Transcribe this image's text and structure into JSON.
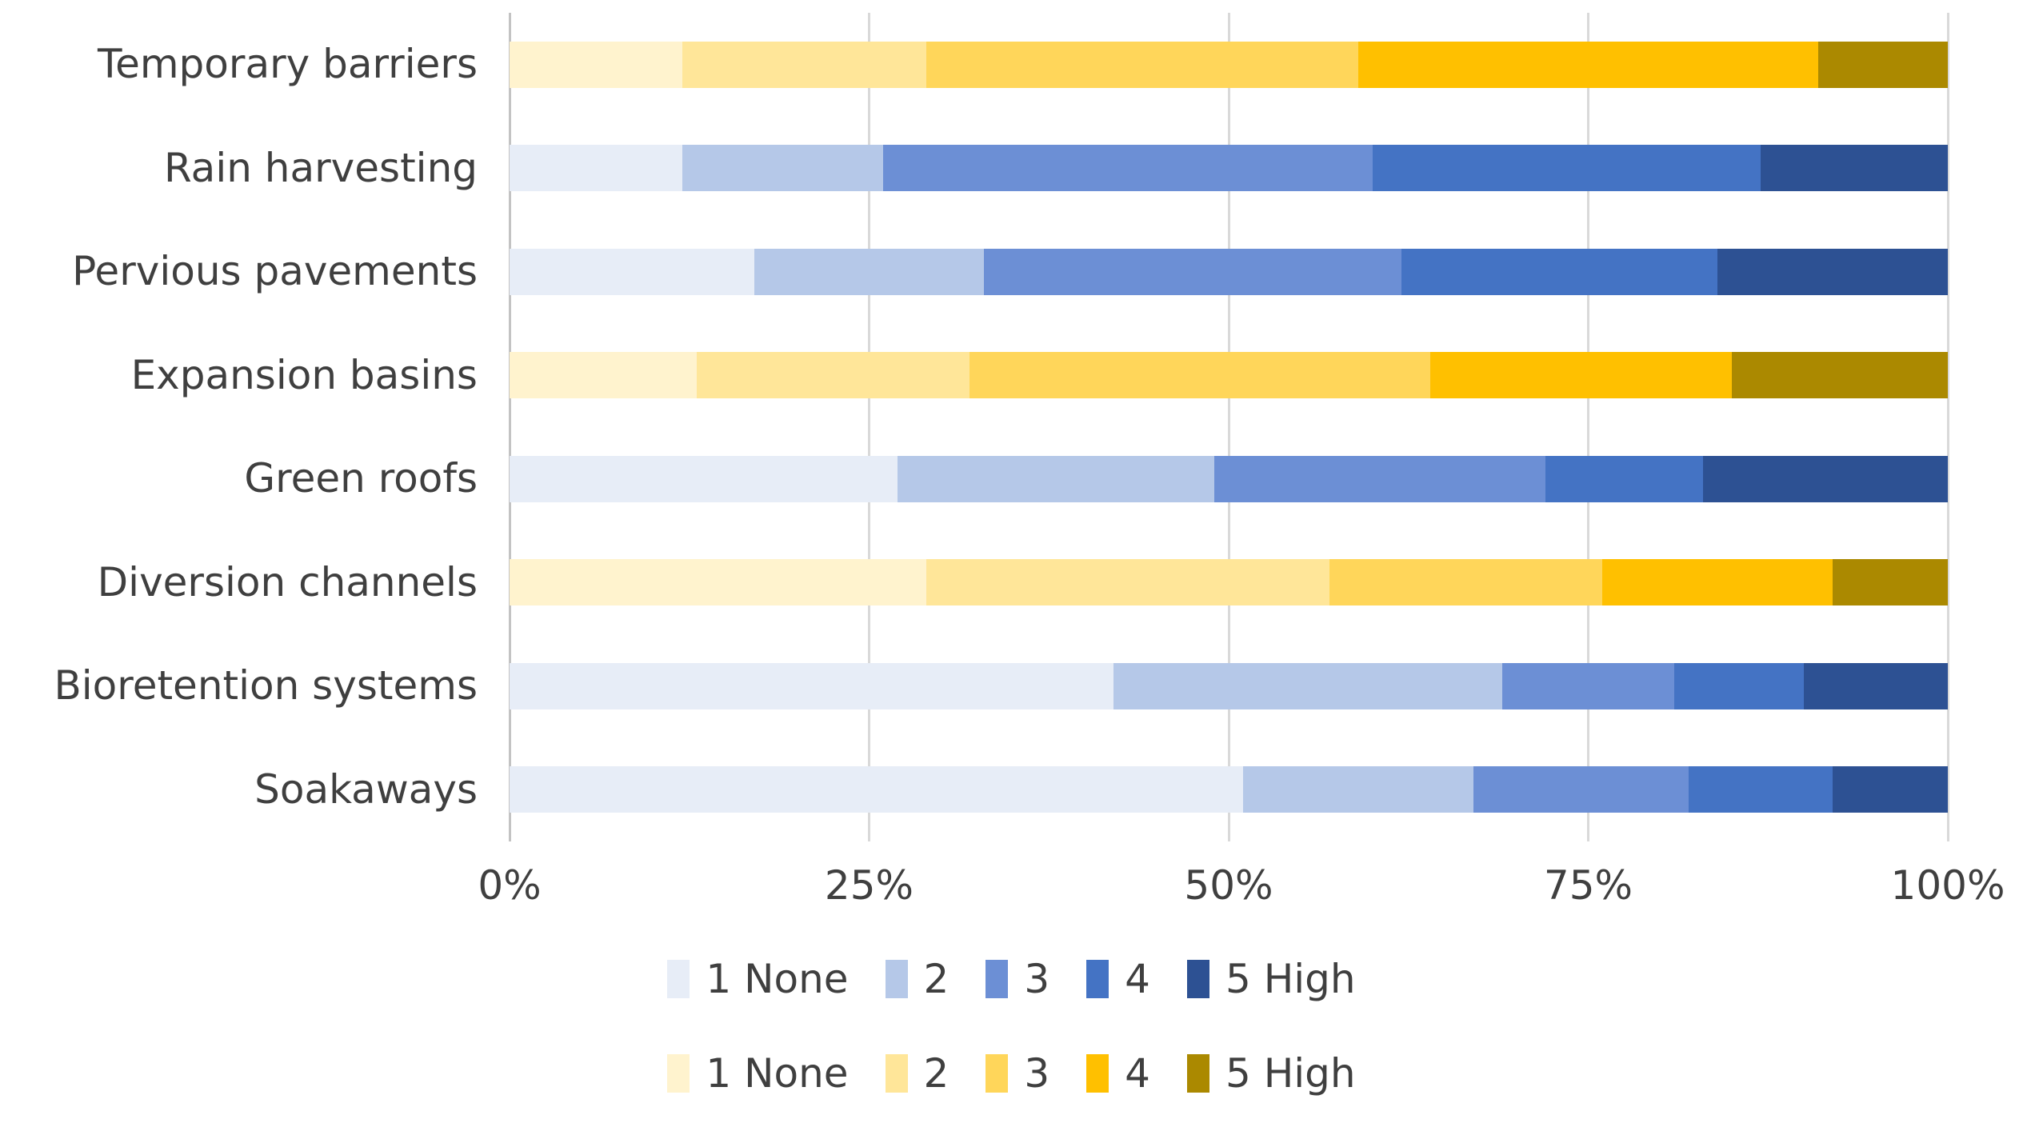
{
  "chart_data": {
    "type": "bar",
    "orientation": "horizontal",
    "stacked": true,
    "stack_mode": "percent",
    "title": "",
    "xlabel": "",
    "ylabel": "",
    "xlim": [
      0,
      100
    ],
    "grid": true,
    "x_ticks": [
      "0%",
      "25%",
      "50%",
      "75%",
      "100%"
    ],
    "legend_levels": [
      "1 None",
      "2",
      "3",
      "4",
      "5 High"
    ],
    "palettes": {
      "blue": [
        "#E7EDF7",
        "#B5C8E8",
        "#6C8FD5",
        "#4473C4",
        "#2D5193"
      ],
      "yellow": [
        "#FFF3CE",
        "#FFE699",
        "#FFD65A",
        "#FFC000",
        "#AB8900"
      ]
    },
    "rows": [
      {
        "label": "Temporary barriers",
        "palette": "yellow",
        "values": [
          12,
          17,
          30,
          32,
          9
        ]
      },
      {
        "label": "Rain harvesting",
        "palette": "blue",
        "values": [
          12,
          14,
          34,
          27,
          13
        ]
      },
      {
        "label": "Pervious pavements",
        "palette": "blue",
        "values": [
          17,
          16,
          29,
          22,
          16
        ]
      },
      {
        "label": "Expansion basins",
        "palette": "yellow",
        "values": [
          13,
          19,
          32,
          21,
          15
        ]
      },
      {
        "label": "Green roofs",
        "palette": "blue",
        "values": [
          27,
          22,
          23,
          11,
          17
        ]
      },
      {
        "label": "Diversion channels",
        "palette": "yellow",
        "values": [
          29,
          28,
          19,
          16,
          8
        ]
      },
      {
        "label": "Bioretention systems",
        "palette": "blue",
        "values": [
          42,
          27,
          12,
          9,
          10
        ]
      },
      {
        "label": "Soakaways",
        "palette": "blue",
        "values": [
          51,
          16,
          15,
          10,
          8
        ]
      }
    ],
    "legends": [
      {
        "palette": "blue",
        "position": "bottom-center",
        "items": [
          "1 None",
          "2",
          "3",
          "4",
          "5 High"
        ]
      },
      {
        "palette": "yellow",
        "position": "bottom-center",
        "items": [
          "1 None",
          "2",
          "3",
          "4",
          "5 High"
        ]
      }
    ]
  }
}
